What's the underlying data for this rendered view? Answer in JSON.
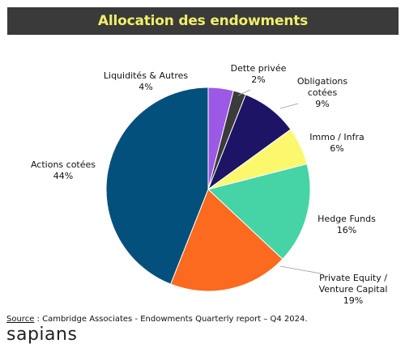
{
  "header": {
    "title": "Allocation des endowments"
  },
  "chart_data": {
    "type": "pie",
    "title": "Allocation des endowments",
    "start_angle_deg": 0,
    "direction": "clockwise",
    "slices": [
      {
        "label": "Liquidités & Autres",
        "value": 4,
        "value_label": "4%",
        "color": "#9b59e6"
      },
      {
        "label": "Dette privée",
        "value": 2,
        "value_label": "2%",
        "color": "#3b3b3b"
      },
      {
        "label": "Obligations cotées",
        "label_lines": [
          "Obligations",
          "cotées"
        ],
        "value": 9,
        "value_label": "9%",
        "color": "#1d1466"
      },
      {
        "label": "Immo / Infra",
        "value": 6,
        "value_label": "6%",
        "color": "#fbf86e"
      },
      {
        "label": "Hedge Funds",
        "value": 16,
        "value_label": "16%",
        "color": "#46d3a5"
      },
      {
        "label": "Private Equity / Venture Capital",
        "label_lines": [
          "Private Equity /",
          "Venture Capital"
        ],
        "value": 19,
        "value_label": "19%",
        "color": "#fb6a1f"
      },
      {
        "label": "Actions cotées",
        "value": 44,
        "value_label": "44%",
        "color": "#04507c"
      }
    ]
  },
  "footer": {
    "source_key": "Source",
    "source_text": " : Cambridge Associates - Endowments Quarterly report – Q4 2024.",
    "brand": "sapians"
  }
}
